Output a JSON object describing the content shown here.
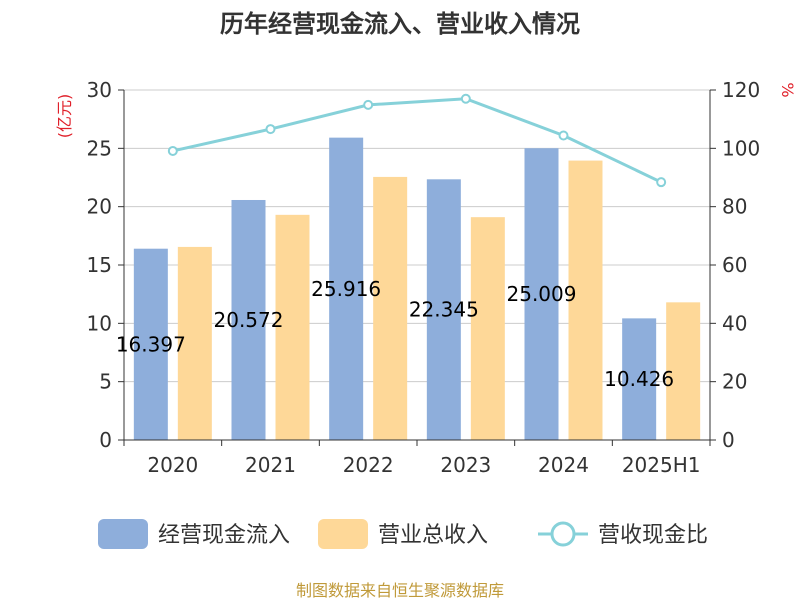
{
  "chart_data": {
    "type": "bar",
    "title": "历年经营现金流入、营业收入情况",
    "categories": [
      "2020",
      "2021",
      "2022",
      "2023",
      "2024",
      "2025H1"
    ],
    "series": [
      {
        "name": "经营现金流入",
        "type": "bar",
        "axis": "left",
        "color": "#8eaedb",
        "values": [
          16.397,
          20.572,
          25.916,
          22.345,
          25.009,
          10.426
        ]
      },
      {
        "name": "营业总收入",
        "type": "bar",
        "axis": "left",
        "color": "#fed898",
        "values": [
          16.55,
          19.3,
          22.55,
          19.1,
          23.95,
          11.8
        ]
      },
      {
        "name": "营收现金比",
        "type": "line",
        "axis": "right",
        "color": "#86d1d9",
        "values": [
          99.1,
          106.6,
          114.9,
          117.0,
          104.4,
          88.4
        ]
      }
    ],
    "bar_labels": [
      "16.397",
      "20.572",
      "25.916",
      "22.345",
      "25.009",
      "10.426"
    ],
    "y_left": {
      "unit": "(亿元)",
      "ylim": [
        0,
        30
      ],
      "ticks": [
        "0",
        "5",
        "10",
        "15",
        "20",
        "25",
        "30"
      ]
    },
    "y_right": {
      "unit": "%",
      "ylim": [
        0,
        120
      ],
      "ticks": [
        "0",
        "20",
        "40",
        "60",
        "80",
        "100",
        "120"
      ]
    },
    "grid": true,
    "legend_position": "bottom",
    "source": "制图数据来自恒生聚源数据库",
    "unit_color": "#e0202a",
    "source_color": "#c09a3a"
  }
}
